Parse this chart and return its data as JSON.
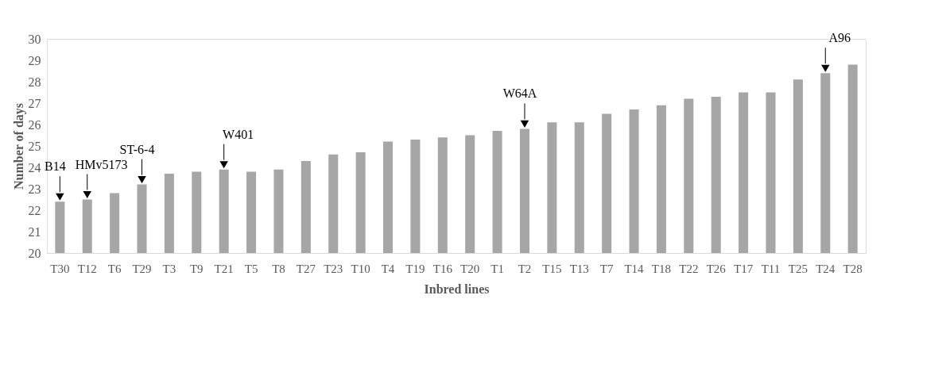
{
  "chart_data": {
    "type": "bar",
    "xlabel": "Inbred lines",
    "ylabel": "Number of days",
    "categories": [
      "T30",
      "T12",
      "T6",
      "T29",
      "T3",
      "T9",
      "T21",
      "T5",
      "T8",
      "T27",
      "T23",
      "T10",
      "T4",
      "T19",
      "T16",
      "T20",
      "T1",
      "T2",
      "T15",
      "T13",
      "T7",
      "T14",
      "T18",
      "T22",
      "T26",
      "T17",
      "T11",
      "T25",
      "T24",
      "T28"
    ],
    "values": [
      22.4,
      22.5,
      22.8,
      23.2,
      23.7,
      23.8,
      23.9,
      23.8,
      23.9,
      24.3,
      24.6,
      24.7,
      25.2,
      25.3,
      25.4,
      25.5,
      25.7,
      25.8,
      26.1,
      26.1,
      26.5,
      26.7,
      26.9,
      27.2,
      27.3,
      27.5,
      27.5,
      28.1,
      28.4,
      28.8
    ],
    "color": "#a6a6a6",
    "ylim": [
      20,
      30
    ],
    "yticks": [
      20,
      21,
      22,
      23,
      24,
      25,
      26,
      27,
      28,
      29,
      30
    ],
    "grid": false,
    "annotations": [
      {
        "text": "B14",
        "x": "T30",
        "y": 22.4
      },
      {
        "text": "HMv5173",
        "x": "T12",
        "y": 22.5
      },
      {
        "text": "ST-6-4",
        "x": "T29",
        "y": 23.2
      },
      {
        "text": "W401",
        "x": "T21",
        "y": 23.9
      },
      {
        "text": "W64A",
        "x": "T2",
        "y": 25.8
      },
      {
        "text": "A96",
        "x": "T24",
        "y": 28.4
      }
    ]
  }
}
